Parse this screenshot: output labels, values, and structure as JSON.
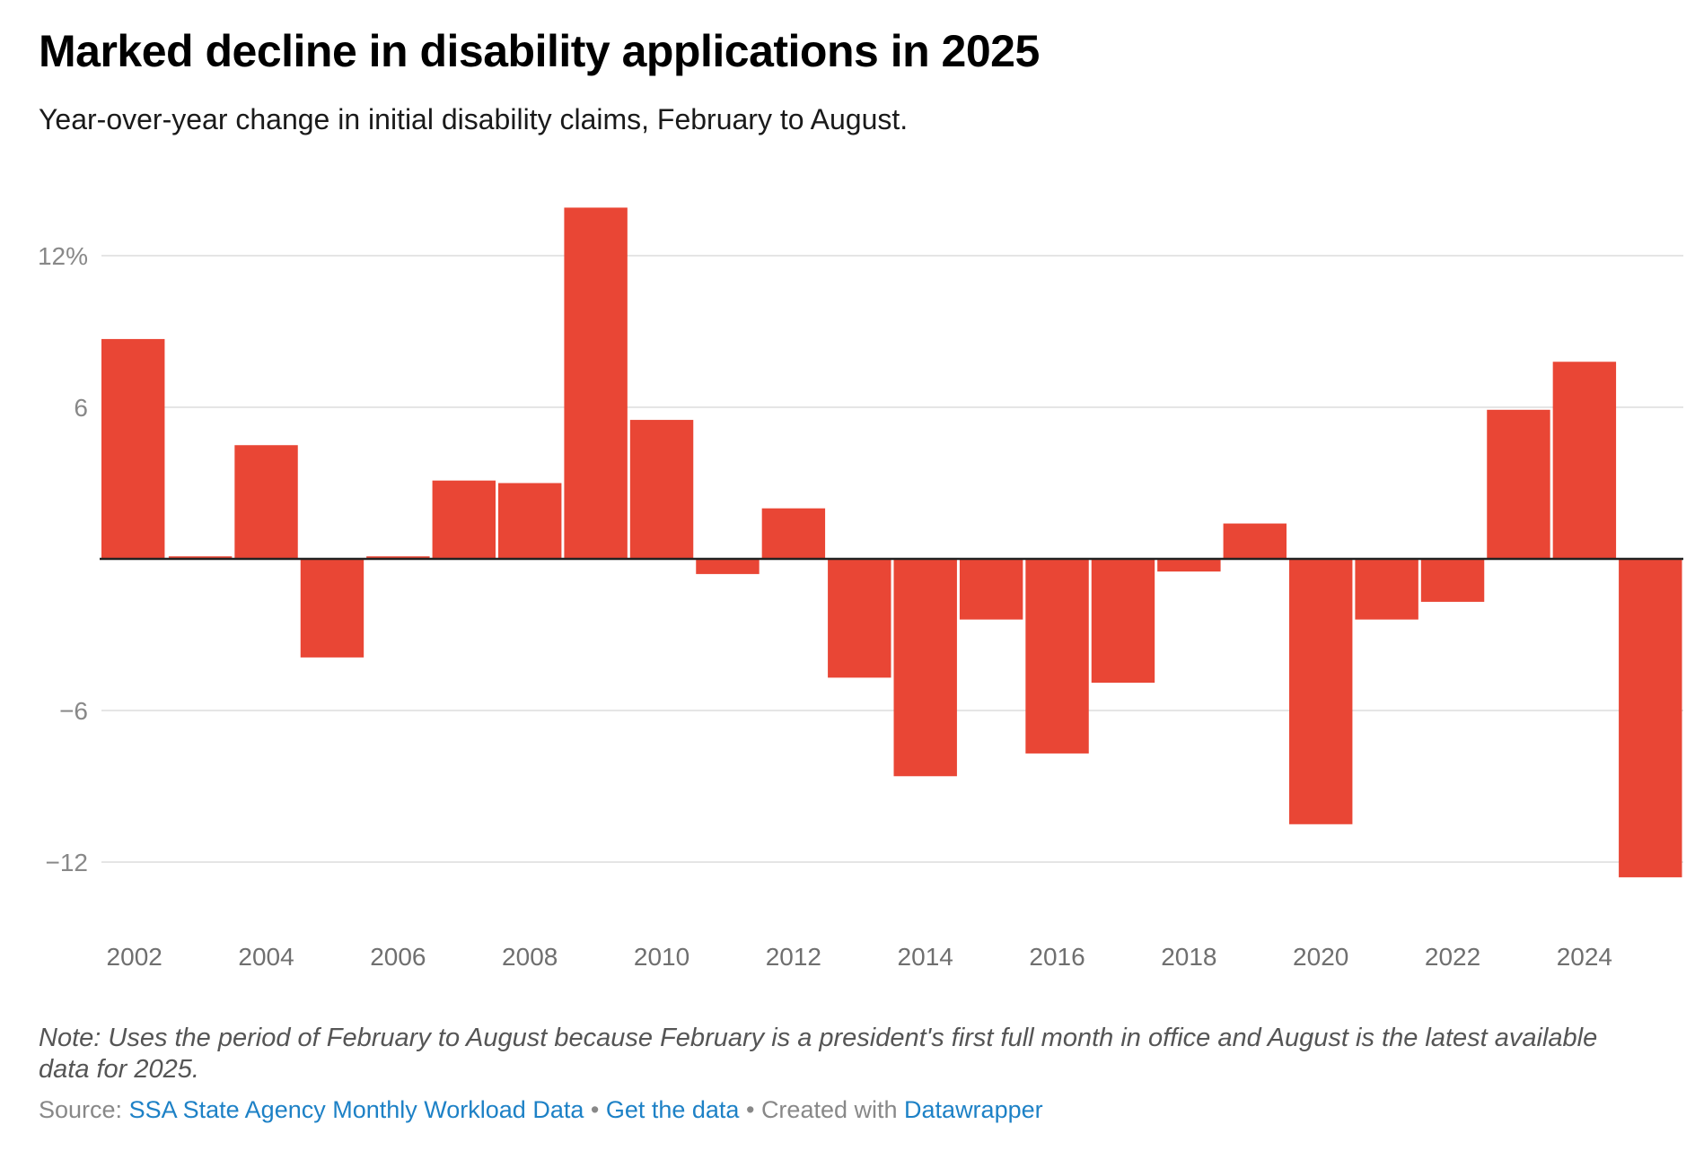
{
  "header": {
    "title": "Marked decline in disability applications in 2025",
    "subtitle": "Year-over-year change in initial disability claims, February to August."
  },
  "footer": {
    "note": "Note: Uses the period of February to August because February is a president's first full month in office and August is the latest available data for 2025.",
    "source_prefix": "Source:",
    "source_link": "SSA State Agency Monthly Workload Data",
    "separator": "•",
    "get_data_link": "Get the data",
    "created_with": "Created with",
    "datawrapper_link": "Datawrapper"
  },
  "colors": {
    "bar": "#e94635",
    "gridline": "#e5e5e5",
    "baseline": "#222222",
    "link": "#1d81c6"
  },
  "chart_data": {
    "type": "bar",
    "title": "Marked decline in disability applications in 2025",
    "subtitle": "Year-over-year change in initial disability claims, February to August.",
    "xlabel": "",
    "ylabel": "",
    "categories": [
      "2002",
      "2003",
      "2004",
      "2005",
      "2006",
      "2007",
      "2008",
      "2009",
      "2010",
      "2011",
      "2012",
      "2013",
      "2014",
      "2015",
      "2016",
      "2017",
      "2018",
      "2019",
      "2020",
      "2021",
      "2022",
      "2023",
      "2024",
      "2025"
    ],
    "values": [
      8.7,
      0.1,
      4.5,
      -3.9,
      0.1,
      3.1,
      3.0,
      13.9,
      5.5,
      -0.6,
      2.0,
      -4.7,
      -8.6,
      -2.4,
      -7.7,
      -4.9,
      -0.5,
      1.4,
      -10.5,
      -2.4,
      -1.7,
      5.9,
      7.8,
      -12.6
    ],
    "x_tick_labels": [
      "2002",
      "2004",
      "2006",
      "2008",
      "2010",
      "2012",
      "2014",
      "2016",
      "2018",
      "2020",
      "2022",
      "2024"
    ],
    "y_ticks": [
      {
        "value": 12,
        "label": "12%"
      },
      {
        "value": 6,
        "label": "6"
      },
      {
        "value": -6,
        "label": "−6"
      },
      {
        "value": -12,
        "label": "−12"
      }
    ],
    "ylim": [
      -14.2,
      14.4
    ],
    "grid": true,
    "legend": "none"
  }
}
